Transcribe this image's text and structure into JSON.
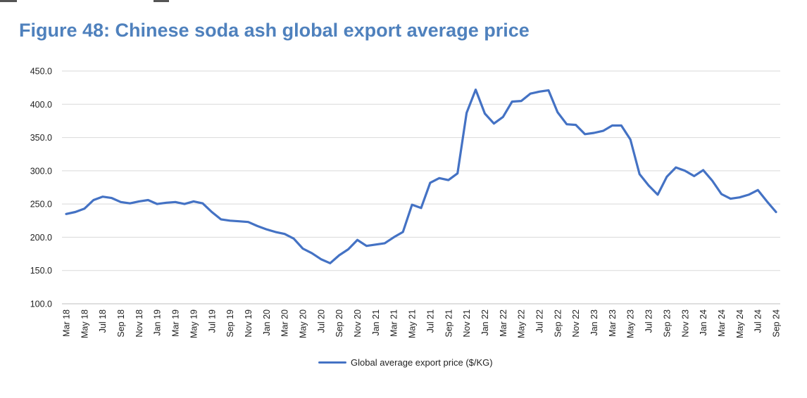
{
  "figure": {
    "title": "Figure 48: Chinese soda ash global export average price"
  },
  "chart_data": {
    "type": "line",
    "title": "Figure 48: Chinese soda ash global export average price",
    "xlabel": "",
    "ylabel": "",
    "ylim": [
      100,
      450
    ],
    "yticks": [
      "100.0",
      "150.0",
      "200.0",
      "250.0",
      "300.0",
      "350.0",
      "400.0",
      "450.0"
    ],
    "grid": true,
    "legend_position": "bottom",
    "colors": {
      "series": "#4472c4",
      "title": "#4f81bd",
      "grid": "#d9d9d9"
    },
    "x": [
      "Mar 18",
      "Apr 18",
      "May 18",
      "Jun 18",
      "Jul 18",
      "Aug 18",
      "Sep 18",
      "Oct 18",
      "Nov 18",
      "Dec 18",
      "Jan 19",
      "Feb 19",
      "Mar 19",
      "Apr 19",
      "May 19",
      "Jun 19",
      "Jul 19",
      "Aug 19",
      "Sep 19",
      "Oct 19",
      "Nov 19",
      "Dec 19",
      "Jan 20",
      "Feb 20",
      "Mar 20",
      "Apr 20",
      "May 20",
      "Jun 20",
      "Jul 20",
      "Aug 20",
      "Sep 20",
      "Oct 20",
      "Nov 20",
      "Dec 20",
      "Jan 21",
      "Feb 21",
      "Mar 21",
      "Apr 21",
      "May 21",
      "Jun 21",
      "Jul 21",
      "Aug 21",
      "Sep 21",
      "Oct 21",
      "Nov 21",
      "Dec 21",
      "Jan 22",
      "Feb 22",
      "Mar 22",
      "Apr 22",
      "May 22",
      "Jun 22",
      "Jul 22",
      "Aug 22",
      "Sep 22",
      "Oct 22",
      "Nov 22",
      "Dec 22",
      "Jan 23",
      "Feb 23",
      "Mar 23",
      "Apr 23",
      "May 23",
      "Jun 23",
      "Jul 23",
      "Aug 23",
      "Sep 23",
      "Oct 23",
      "Nov 23",
      "Dec 23",
      "Jan 24",
      "Feb 24",
      "Mar 24",
      "Apr 24",
      "May 24",
      "Jun 24",
      "Jul 24",
      "Aug 24",
      "Sep 24"
    ],
    "xtick_labels": [
      "Mar 18",
      "May 18",
      "Jul 18",
      "Sep 18",
      "Nov 18",
      "Jan 19",
      "Mar 19",
      "May 19",
      "Jul 19",
      "Sep 19",
      "Nov 19",
      "Jan 20",
      "Mar 20",
      "May 20",
      "Jul 20",
      "Sep 20",
      "Nov 20",
      "Jan 21",
      "Mar 21",
      "May 21",
      "Jul 21",
      "Sep 21",
      "Nov 21",
      "Jan 22",
      "Mar 22",
      "May 22",
      "Jul 22",
      "Sep 22",
      "Nov 22",
      "Jan 23",
      "Mar 23",
      "May 23",
      "Jul 23",
      "Sep 23",
      "Nov 23",
      "Jan 24",
      "Mar 24",
      "May 24",
      "Jul 24",
      "Sep 24"
    ],
    "series": [
      {
        "name": "Global average export price ($/KG)",
        "values": [
          235,
          238,
          243,
          256,
          261,
          259,
          253,
          251,
          254,
          256,
          250,
          252,
          253,
          250,
          254,
          251,
          238,
          227,
          225,
          224,
          223,
          217,
          212,
          208,
          205,
          198,
          183,
          176,
          167,
          161,
          173,
          182,
          196,
          187,
          189,
          191,
          200,
          208,
          249,
          244,
          282,
          289,
          286,
          296,
          387,
          422,
          386,
          371,
          381,
          404,
          405,
          416,
          419,
          421,
          388,
          370,
          369,
          355,
          357,
          360,
          368,
          368,
          347,
          295,
          278,
          264,
          291,
          305,
          300,
          292,
          301,
          285,
          265,
          258,
          260,
          264,
          271,
          254,
          238
        ]
      }
    ]
  }
}
